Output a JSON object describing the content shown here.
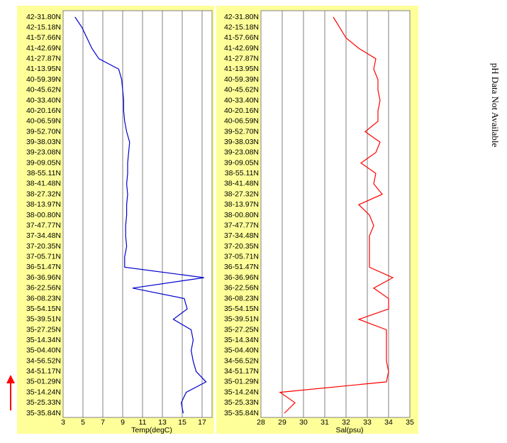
{
  "chart_data": [
    {
      "type": "line",
      "orientation": "horizontal",
      "xlabel": "Temp(degC)",
      "color": "#0000cc",
      "categories": [
        "42-31.80N",
        "42-15.18N",
        "41-57.66N",
        "41-42.69N",
        "41-27.87N",
        "41-13.95N",
        "40-59.39N",
        "40-45.62N",
        "40-33.40N",
        "40-20.16N",
        "40-06.59N",
        "39-52.70N",
        "39-38.03N",
        "39-23.08N",
        "39-09.05N",
        "38-55.11N",
        "38-41.48N",
        "38-27.32N",
        "38-13.97N",
        "38-00.80N",
        "37-47.77N",
        "37-34.48N",
        "37-20.35N",
        "37-05.71N",
        "36-51.47N",
        "36-36.96N",
        "36-22.56N",
        "36-08.23N",
        "35-54.15N",
        "35-39.51N",
        "35-27.25N",
        "35-14.34N",
        "35-04.40N",
        "34-56.52N",
        "34-51.17N",
        "35-01.29N",
        "35-14.24N",
        "35-25.33N",
        "35-35.84N"
      ],
      "values": [
        4.2,
        4.9,
        5.4,
        5.9,
        6.6,
        8.6,
        8.9,
        9.0,
        9.1,
        9.1,
        9.2,
        9.4,
        9.7,
        9.6,
        9.5,
        9.5,
        9.4,
        9.5,
        9.4,
        9.4,
        9.3,
        9.3,
        9.4,
        9.2,
        9.2,
        17.2,
        10.0,
        15.2,
        15.5,
        14.1,
        15.9,
        16.1,
        15.9,
        16.1,
        16.4,
        17.4,
        15.4,
        14.9,
        15.1
      ],
      "xlim": [
        3,
        18
      ],
      "xticks": [
        3,
        5,
        7,
        9,
        11,
        13,
        15,
        17
      ],
      "grid": true
    },
    {
      "type": "line",
      "orientation": "horizontal",
      "xlabel": "Sal(psu)",
      "color": "#ff0000",
      "categories": [
        "42-31.80N",
        "42-15.18N",
        "41-57.66N",
        "41-42.69N",
        "41-27.87N",
        "41-13.95N",
        "40-59.39N",
        "40-45.62N",
        "40-33.40N",
        "40-20.16N",
        "40-06.59N",
        "39-52.70N",
        "39-38.03N",
        "39-23.08N",
        "39-09.05N",
        "38-55.11N",
        "38-41.48N",
        "38-27.32N",
        "38-13.97N",
        "38-00.80N",
        "37-47.77N",
        "37-34.48N",
        "37-20.35N",
        "37-05.71N",
        "36-51.47N",
        "36-36.96N",
        "36-22.56N",
        "36-08.23N",
        "35-54.15N",
        "35-39.51N",
        "35-27.25N",
        "35-14.34N",
        "35-04.40N",
        "34-56.52N",
        "34-51.17N",
        "35-01.29N",
        "35-14.24N",
        "35-25.33N",
        "35-35.84N"
      ],
      "values": [
        31.4,
        31.7,
        32.0,
        32.6,
        33.4,
        33.3,
        33.5,
        33.5,
        33.6,
        33.5,
        33.5,
        32.9,
        33.6,
        33.4,
        32.7,
        33.4,
        33.3,
        33.7,
        32.6,
        33.1,
        33.3,
        33.1,
        33.1,
        33.1,
        33.1,
        34.2,
        33.3,
        34.0,
        34.0,
        32.6,
        33.9,
        33.9,
        33.9,
        33.9,
        34.0,
        33.9,
        28.9,
        29.6,
        29.1
      ],
      "xlim": [
        28,
        35
      ],
      "xticks": [
        28,
        29,
        30,
        31,
        32,
        33,
        34,
        35
      ],
      "grid": true
    }
  ],
  "note": "pH Data Not Available"
}
